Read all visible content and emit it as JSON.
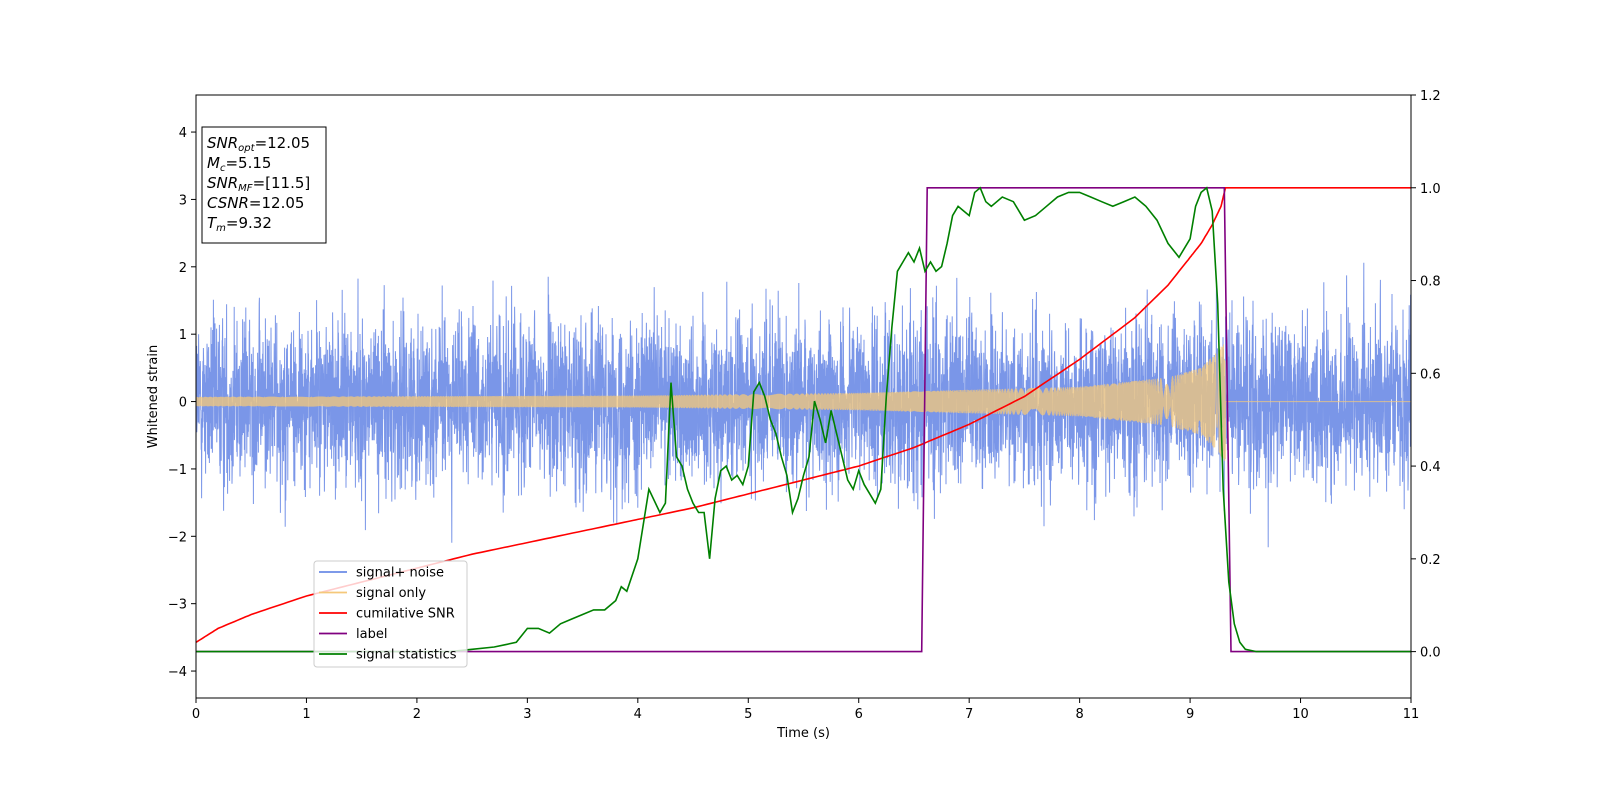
{
  "chart_data": {
    "type": "line",
    "xlabel": "Time (s)",
    "ylabel": "Whitened strain",
    "xlim": [
      0,
      11
    ],
    "ylim": [
      -4.4,
      4.55
    ],
    "y2lim": [
      -0.1,
      1.2
    ],
    "x_ticks": [
      "0",
      "1",
      "2",
      "3",
      "4",
      "5",
      "6",
      "7",
      "8",
      "9",
      "10",
      "11"
    ],
    "y_ticks": [
      "−4",
      "−3",
      "−2",
      "−1",
      "0",
      "1",
      "2",
      "3",
      "4"
    ],
    "y2_ticks": [
      "0.0",
      "0.2",
      "0.4",
      "0.6",
      "0.8",
      "1.0",
      "1.2"
    ],
    "grid": false,
    "legend_position": "lower-left",
    "legend": {
      "items": [
        {
          "label": "signal+ noise",
          "color": "#6b8be6"
        },
        {
          "label": "signal only",
          "color": "#f5c87a"
        },
        {
          "label": "cumilative SNR",
          "color": "#ff0000"
        },
        {
          "label": "label",
          "color": "#800080"
        },
        {
          "label": "signal statistics",
          "color": "#008000"
        }
      ]
    },
    "annotation": {
      "lines": [
        {
          "main": "SNR",
          "sub": "opt",
          "rest": "=12.05"
        },
        {
          "main": "M",
          "sub": "c",
          "rest": "=5.15"
        },
        {
          "main": "SNR",
          "sub": "MF",
          "rest": "=[11.5]"
        },
        {
          "main": "CSNR",
          "sub": "",
          "rest": "=12.05"
        },
        {
          "main": "T",
          "sub": "m",
          "rest": "=9.32"
        }
      ]
    },
    "series": [
      {
        "name": "signal+ noise",
        "axis": "left",
        "color": "#6b8be6",
        "style": "noise",
        "x_range": [
          0,
          11
        ],
        "noise_band_typical": 2.2,
        "noise_band_peak": 4.15
      },
      {
        "name": "signal only",
        "axis": "left",
        "color": "#f5c87a",
        "style": "chirp",
        "t_merge": 9.32,
        "amplitude_envelope": [
          [
            0,
            0.07
          ],
          [
            4,
            0.09
          ],
          [
            6,
            0.13
          ],
          [
            8,
            0.22
          ],
          [
            8.8,
            0.36
          ],
          [
            9.1,
            0.5
          ],
          [
            9.25,
            0.75
          ],
          [
            9.32,
            0.9
          ]
        ]
      },
      {
        "name": "cumilative SNR",
        "axis": "right",
        "color": "#ff0000",
        "x": [
          0,
          0.2,
          0.5,
          1,
          1.5,
          2,
          2.5,
          3,
          3.5,
          4,
          4.5,
          5,
          5.5,
          6,
          6.5,
          7,
          7.5,
          8,
          8.5,
          8.8,
          9,
          9.1,
          9.2,
          9.28,
          9.32,
          11
        ],
        "y": [
          0.02,
          0.05,
          0.08,
          0.12,
          0.15,
          0.18,
          0.21,
          0.235,
          0.26,
          0.285,
          0.31,
          0.34,
          0.37,
          0.4,
          0.44,
          0.49,
          0.55,
          0.63,
          0.72,
          0.79,
          0.85,
          0.88,
          0.92,
          0.96,
          1.0,
          1.0
        ]
      },
      {
        "name": "label",
        "axis": "right",
        "color": "#800080",
        "x": [
          0,
          6.57,
          6.62,
          9.31,
          9.37,
          11
        ],
        "y": [
          0,
          0,
          1,
          1,
          0,
          0
        ]
      },
      {
        "name": "signal statistics",
        "axis": "right",
        "color": "#008000",
        "x": [
          0,
          2.3,
          2.5,
          2.7,
          2.8,
          2.9,
          3.0,
          3.1,
          3.2,
          3.3,
          3.4,
          3.5,
          3.6,
          3.7,
          3.8,
          3.85,
          3.9,
          4.0,
          4.1,
          4.2,
          4.25,
          4.3,
          4.35,
          4.4,
          4.45,
          4.5,
          4.55,
          4.6,
          4.65,
          4.7,
          4.75,
          4.8,
          4.85,
          4.9,
          4.95,
          5.0,
          5.05,
          5.1,
          5.15,
          5.2,
          5.25,
          5.3,
          5.35,
          5.4,
          5.45,
          5.5,
          5.55,
          5.6,
          5.65,
          5.7,
          5.75,
          5.8,
          5.85,
          5.9,
          5.95,
          6.0,
          6.05,
          6.1,
          6.15,
          6.2,
          6.25,
          6.3,
          6.35,
          6.4,
          6.45,
          6.5,
          6.55,
          6.6,
          6.65,
          6.7,
          6.75,
          6.8,
          6.85,
          6.9,
          6.95,
          7.0,
          7.05,
          7.1,
          7.15,
          7.2,
          7.3,
          7.4,
          7.5,
          7.6,
          7.7,
          7.8,
          7.9,
          8.0,
          8.1,
          8.2,
          8.3,
          8.4,
          8.5,
          8.6,
          8.7,
          8.8,
          8.9,
          9.0,
          9.05,
          9.1,
          9.15,
          9.2,
          9.25,
          9.3,
          9.35,
          9.4,
          9.45,
          9.5,
          9.6,
          11
        ],
        "y": [
          0.0,
          0.0,
          0.005,
          0.01,
          0.015,
          0.02,
          0.05,
          0.05,
          0.04,
          0.06,
          0.07,
          0.08,
          0.09,
          0.09,
          0.11,
          0.14,
          0.13,
          0.2,
          0.35,
          0.3,
          0.32,
          0.58,
          0.42,
          0.4,
          0.35,
          0.32,
          0.3,
          0.3,
          0.2,
          0.33,
          0.39,
          0.4,
          0.37,
          0.38,
          0.36,
          0.4,
          0.56,
          0.58,
          0.55,
          0.5,
          0.47,
          0.42,
          0.38,
          0.3,
          0.33,
          0.38,
          0.42,
          0.54,
          0.5,
          0.45,
          0.52,
          0.47,
          0.42,
          0.37,
          0.35,
          0.39,
          0.36,
          0.34,
          0.32,
          0.35,
          0.55,
          0.7,
          0.82,
          0.84,
          0.86,
          0.84,
          0.87,
          0.82,
          0.84,
          0.82,
          0.83,
          0.88,
          0.94,
          0.96,
          0.95,
          0.94,
          0.99,
          1.0,
          0.97,
          0.96,
          0.98,
          0.97,
          0.93,
          0.94,
          0.96,
          0.98,
          0.99,
          0.99,
          0.98,
          0.97,
          0.96,
          0.97,
          0.98,
          0.96,
          0.93,
          0.88,
          0.85,
          0.89,
          0.96,
          0.99,
          1.0,
          0.95,
          0.75,
          0.35,
          0.15,
          0.06,
          0.02,
          0.005,
          0.0,
          0.0
        ]
      }
    ]
  }
}
